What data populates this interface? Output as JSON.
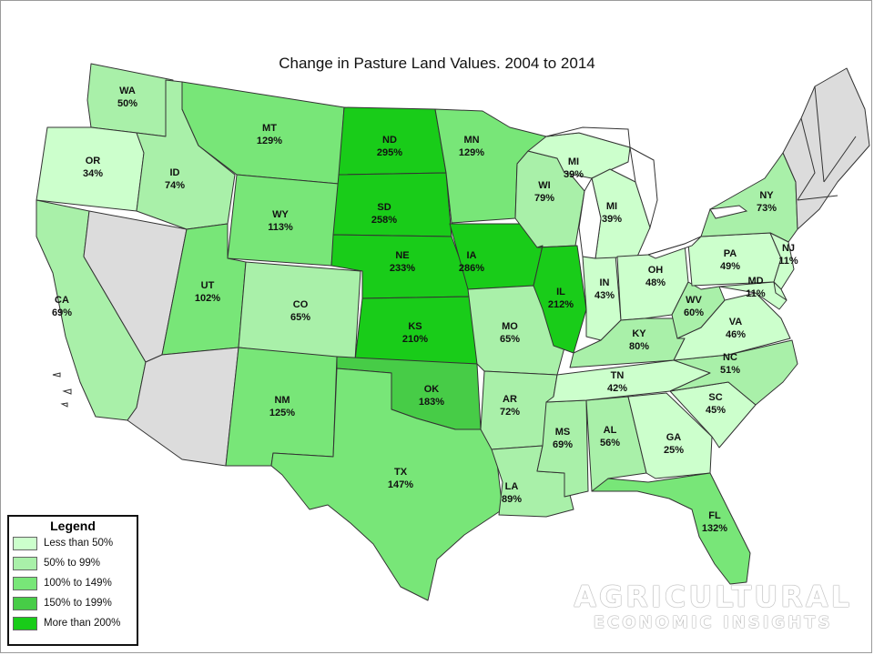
{
  "title": "Change in Pasture Land Values. 2004 to 2014",
  "colors": {
    "lt50": "#ccffcc",
    "50to99": "#a9f0a9",
    "100to149": "#78e678",
    "150to199": "#47cc47",
    "gt200": "#19cc19",
    "nodata": "#dcdcdc"
  },
  "states": [
    {
      "abbr": "WA",
      "value": "50%"
    },
    {
      "abbr": "OR",
      "value": "34%"
    },
    {
      "abbr": "CA",
      "value": "69%"
    },
    {
      "abbr": "ID",
      "value": "74%"
    },
    {
      "abbr": "MT",
      "value": "129%"
    },
    {
      "abbr": "WY",
      "value": "113%"
    },
    {
      "abbr": "UT",
      "value": "102%"
    },
    {
      "abbr": "CO",
      "value": "65%"
    },
    {
      "abbr": "NM",
      "value": "125%"
    },
    {
      "abbr": "ND",
      "value": "295%"
    },
    {
      "abbr": "SD",
      "value": "258%"
    },
    {
      "abbr": "NE",
      "value": "233%"
    },
    {
      "abbr": "KS",
      "value": "210%"
    },
    {
      "abbr": "OK",
      "value": "183%"
    },
    {
      "abbr": "TX",
      "value": "147%"
    },
    {
      "abbr": "MN",
      "value": "129%"
    },
    {
      "abbr": "IA",
      "value": "286%"
    },
    {
      "abbr": "MO",
      "value": "65%"
    },
    {
      "abbr": "AR",
      "value": "72%"
    },
    {
      "abbr": "LA",
      "value": "89%"
    },
    {
      "abbr": "WI",
      "value": "79%"
    },
    {
      "abbr": "IL",
      "value": "212%"
    },
    {
      "abbr": "MI",
      "value": "39%"
    },
    {
      "abbr": "MI",
      "value": "39%"
    },
    {
      "abbr": "IN",
      "value": "43%"
    },
    {
      "abbr": "OH",
      "value": "48%"
    },
    {
      "abbr": "KY",
      "value": "80%"
    },
    {
      "abbr": "TN",
      "value": "42%"
    },
    {
      "abbr": "MS",
      "value": "69%"
    },
    {
      "abbr": "AL",
      "value": "56%"
    },
    {
      "abbr": "GA",
      "value": "25%"
    },
    {
      "abbr": "FL",
      "value": "132%"
    },
    {
      "abbr": "SC",
      "value": "45%"
    },
    {
      "abbr": "NC",
      "value": "51%"
    },
    {
      "abbr": "VA",
      "value": "46%"
    },
    {
      "abbr": "WV",
      "value": "60%"
    },
    {
      "abbr": "PA",
      "value": "49%"
    },
    {
      "abbr": "NY",
      "value": "73%"
    },
    {
      "abbr": "NJ",
      "value": "11%"
    },
    {
      "abbr": "MD",
      "value": "11%"
    }
  ],
  "legend": {
    "title": "Legend",
    "items": [
      {
        "label": "Less than 50%",
        "color": "#ccffcc"
      },
      {
        "label": "50% to 99%",
        "color": "#a9f0a9"
      },
      {
        "label": "100% to 149%",
        "color": "#78e678"
      },
      {
        "label": "150% to 199%",
        "color": "#47cc47"
      },
      {
        "label": "More than 200%",
        "color": "#19cc19"
      }
    ]
  },
  "watermark": {
    "line1": "AGRICULTURAL",
    "line2": "ECONOMIC INSIGHTS"
  }
}
